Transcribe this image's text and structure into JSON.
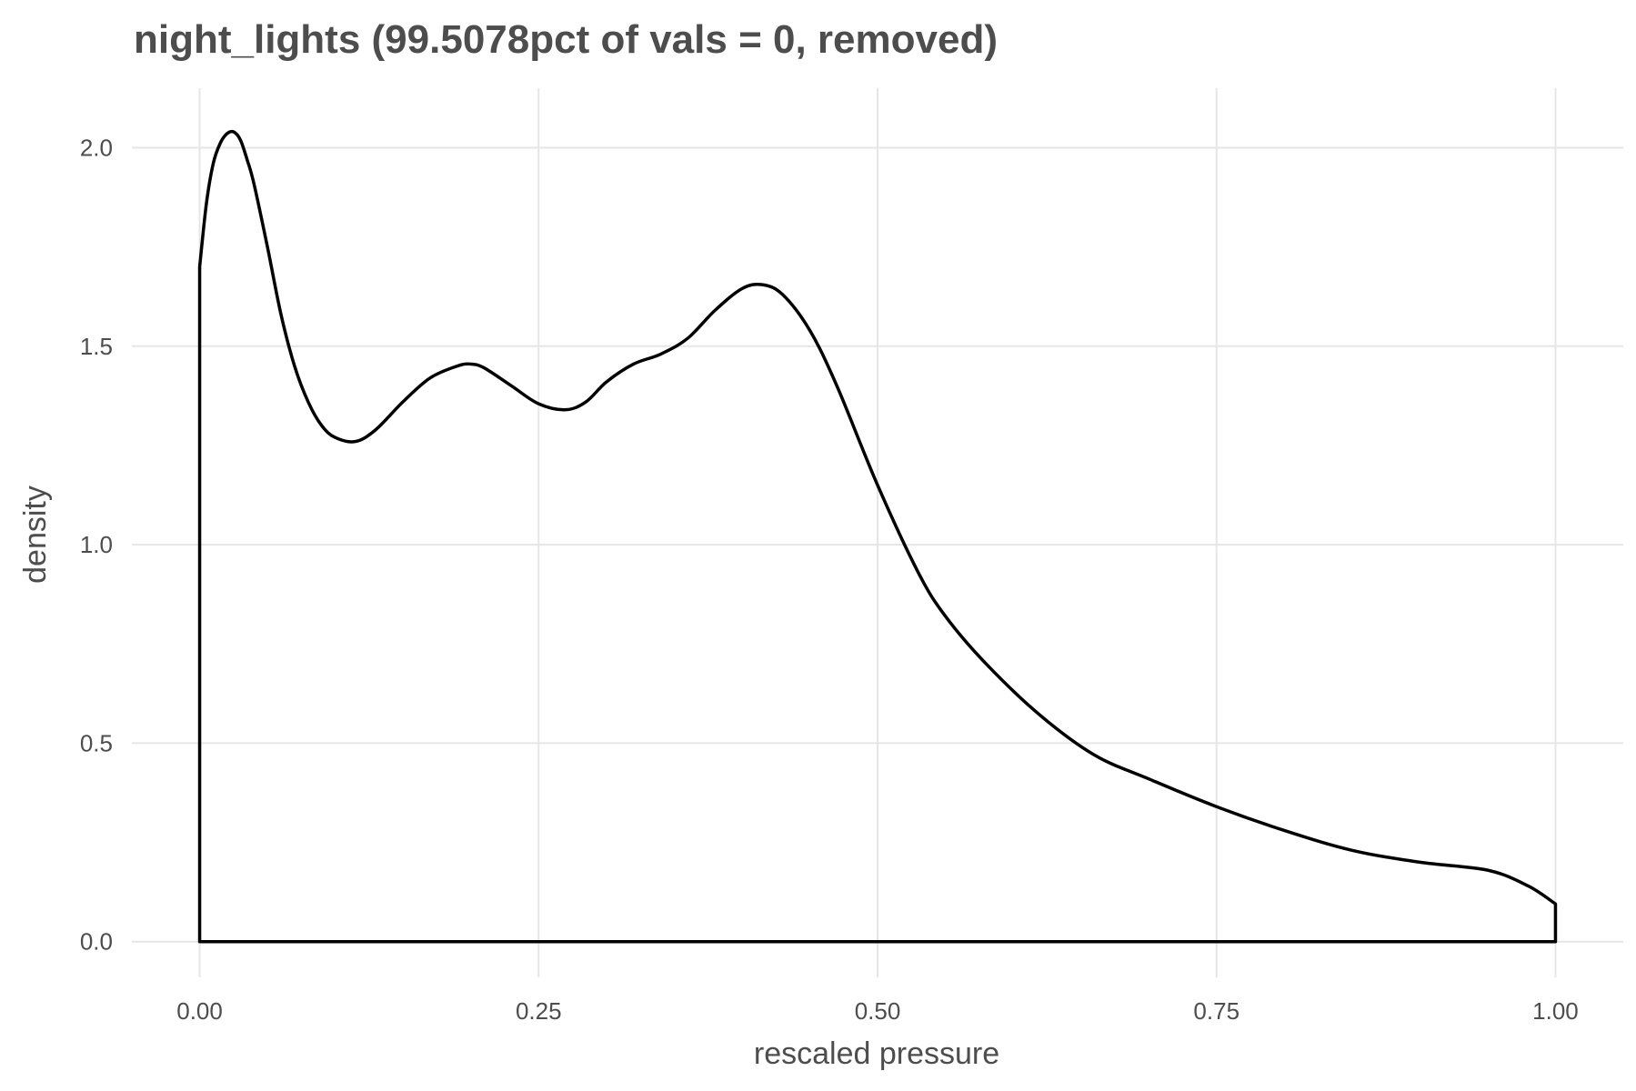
{
  "chart_data": {
    "type": "area",
    "title": "night_lights (99.5078pct of vals = 0, removed)",
    "xlabel": "rescaled pressure",
    "ylabel": "density",
    "xlim": [
      -0.05,
      1.05
    ],
    "ylim": [
      -0.09,
      2.15
    ],
    "x_ticks": [
      0.0,
      0.25,
      0.5,
      0.75,
      1.0
    ],
    "x_tick_labels": [
      "0.00",
      "0.25",
      "0.50",
      "0.75",
      "1.00"
    ],
    "y_ticks": [
      0.0,
      0.5,
      1.0,
      1.5,
      2.0
    ],
    "y_tick_labels": [
      "0.0",
      "0.5",
      "1.0",
      "1.5",
      "2.0"
    ],
    "grid": true,
    "legend": "none",
    "line_color": "#000000",
    "grid_color": "#e6e6e6",
    "series": [
      {
        "x": [
          0.0,
          0.005,
          0.01,
          0.015,
          0.02,
          0.025,
          0.03,
          0.035,
          0.04,
          0.05,
          0.06,
          0.07,
          0.08,
          0.09,
          0.1,
          0.115,
          0.13,
          0.15,
          0.17,
          0.19,
          0.2,
          0.21,
          0.23,
          0.25,
          0.27,
          0.285,
          0.3,
          0.32,
          0.34,
          0.36,
          0.38,
          0.4,
          0.415,
          0.43,
          0.45,
          0.47,
          0.5,
          0.53,
          0.55,
          0.58,
          0.62,
          0.66,
          0.7,
          0.75,
          0.8,
          0.85,
          0.9,
          0.95,
          0.98,
          1.0
        ],
        "y": [
          1.7,
          1.86,
          1.96,
          2.01,
          2.035,
          2.04,
          2.02,
          1.97,
          1.91,
          1.75,
          1.58,
          1.45,
          1.36,
          1.3,
          1.27,
          1.26,
          1.29,
          1.36,
          1.42,
          1.45,
          1.455,
          1.445,
          1.4,
          1.355,
          1.34,
          1.36,
          1.41,
          1.455,
          1.48,
          1.52,
          1.59,
          1.645,
          1.655,
          1.63,
          1.54,
          1.4,
          1.15,
          0.93,
          0.82,
          0.7,
          0.57,
          0.47,
          0.41,
          0.34,
          0.28,
          0.23,
          0.2,
          0.18,
          0.14,
          0.095
        ]
      }
    ]
  }
}
